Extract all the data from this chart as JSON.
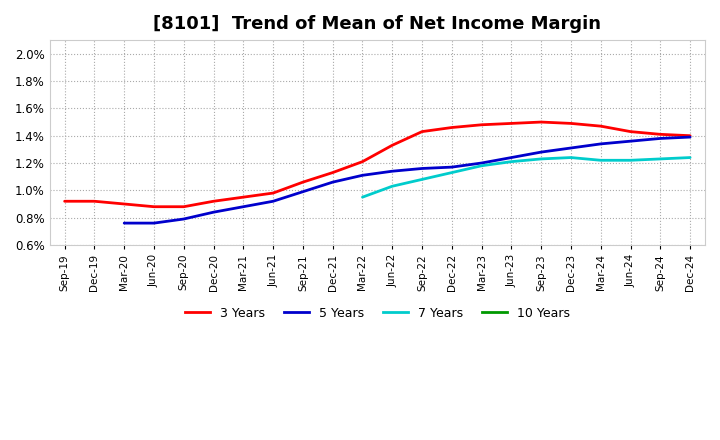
{
  "title": "[8101]  Trend of Mean of Net Income Margin",
  "title_fontsize": 13,
  "background_color": "#ffffff",
  "plot_background_color": "#ffffff",
  "grid_color": "#aaaaaa",
  "grid_style": "dotted",
  "ylim": [
    0.006,
    0.021
  ],
  "yticks": [
    0.006,
    0.008,
    0.01,
    0.012,
    0.014,
    0.016,
    0.018,
    0.02
  ],
  "x_labels": [
    "Sep-19",
    "Dec-19",
    "Mar-20",
    "Jun-20",
    "Sep-20",
    "Dec-20",
    "Mar-21",
    "Jun-21",
    "Sep-21",
    "Dec-21",
    "Mar-22",
    "Jun-22",
    "Sep-22",
    "Dec-22",
    "Mar-23",
    "Jun-23",
    "Sep-23",
    "Dec-23",
    "Mar-24",
    "Jun-24",
    "Sep-24",
    "Dec-24"
  ],
  "series": {
    "3 Years": {
      "color": "#ff0000",
      "linewidth": 2.0,
      "data_x": [
        0,
        1,
        2,
        3,
        4,
        5,
        6,
        7,
        8,
        9,
        10,
        11,
        12,
        13,
        14,
        15,
        16,
        17,
        18,
        19,
        20,
        21
      ],
      "data_y": [
        0.0092,
        0.0092,
        0.009,
        0.0088,
        0.0088,
        0.0092,
        0.0095,
        0.0098,
        0.0106,
        0.0113,
        0.0121,
        0.0133,
        0.0143,
        0.0146,
        0.0148,
        0.0149,
        0.015,
        0.0149,
        0.0147,
        0.0143,
        0.0141,
        0.014
      ]
    },
    "5 Years": {
      "color": "#0000cc",
      "linewidth": 2.0,
      "data_x": [
        2,
        3,
        4,
        5,
        6,
        7,
        8,
        9,
        10,
        11,
        12,
        13,
        14,
        15,
        16,
        17,
        18,
        19,
        20,
        21
      ],
      "data_y": [
        0.0076,
        0.0076,
        0.0079,
        0.0084,
        0.0088,
        0.0092,
        0.0099,
        0.0106,
        0.0111,
        0.0114,
        0.0116,
        0.0117,
        0.012,
        0.0124,
        0.0128,
        0.0131,
        0.0134,
        0.0136,
        0.0138,
        0.0139
      ]
    },
    "7 Years": {
      "color": "#00cccc",
      "linewidth": 2.0,
      "data_x": [
        10,
        11,
        12,
        13,
        14,
        15,
        16,
        17,
        18,
        19,
        20,
        21
      ],
      "data_y": [
        0.0095,
        0.0103,
        0.0108,
        0.0113,
        0.0118,
        0.0121,
        0.0123,
        0.0124,
        0.0122,
        0.0122,
        0.0123,
        0.0124
      ]
    },
    "10 Years": {
      "color": "#009900",
      "linewidth": 2.0,
      "data_x": [],
      "data_y": []
    }
  },
  "legend_labels": [
    "3 Years",
    "5 Years",
    "7 Years",
    "10 Years"
  ],
  "legend_colors": [
    "#ff0000",
    "#0000cc",
    "#00cccc",
    "#009900"
  ]
}
